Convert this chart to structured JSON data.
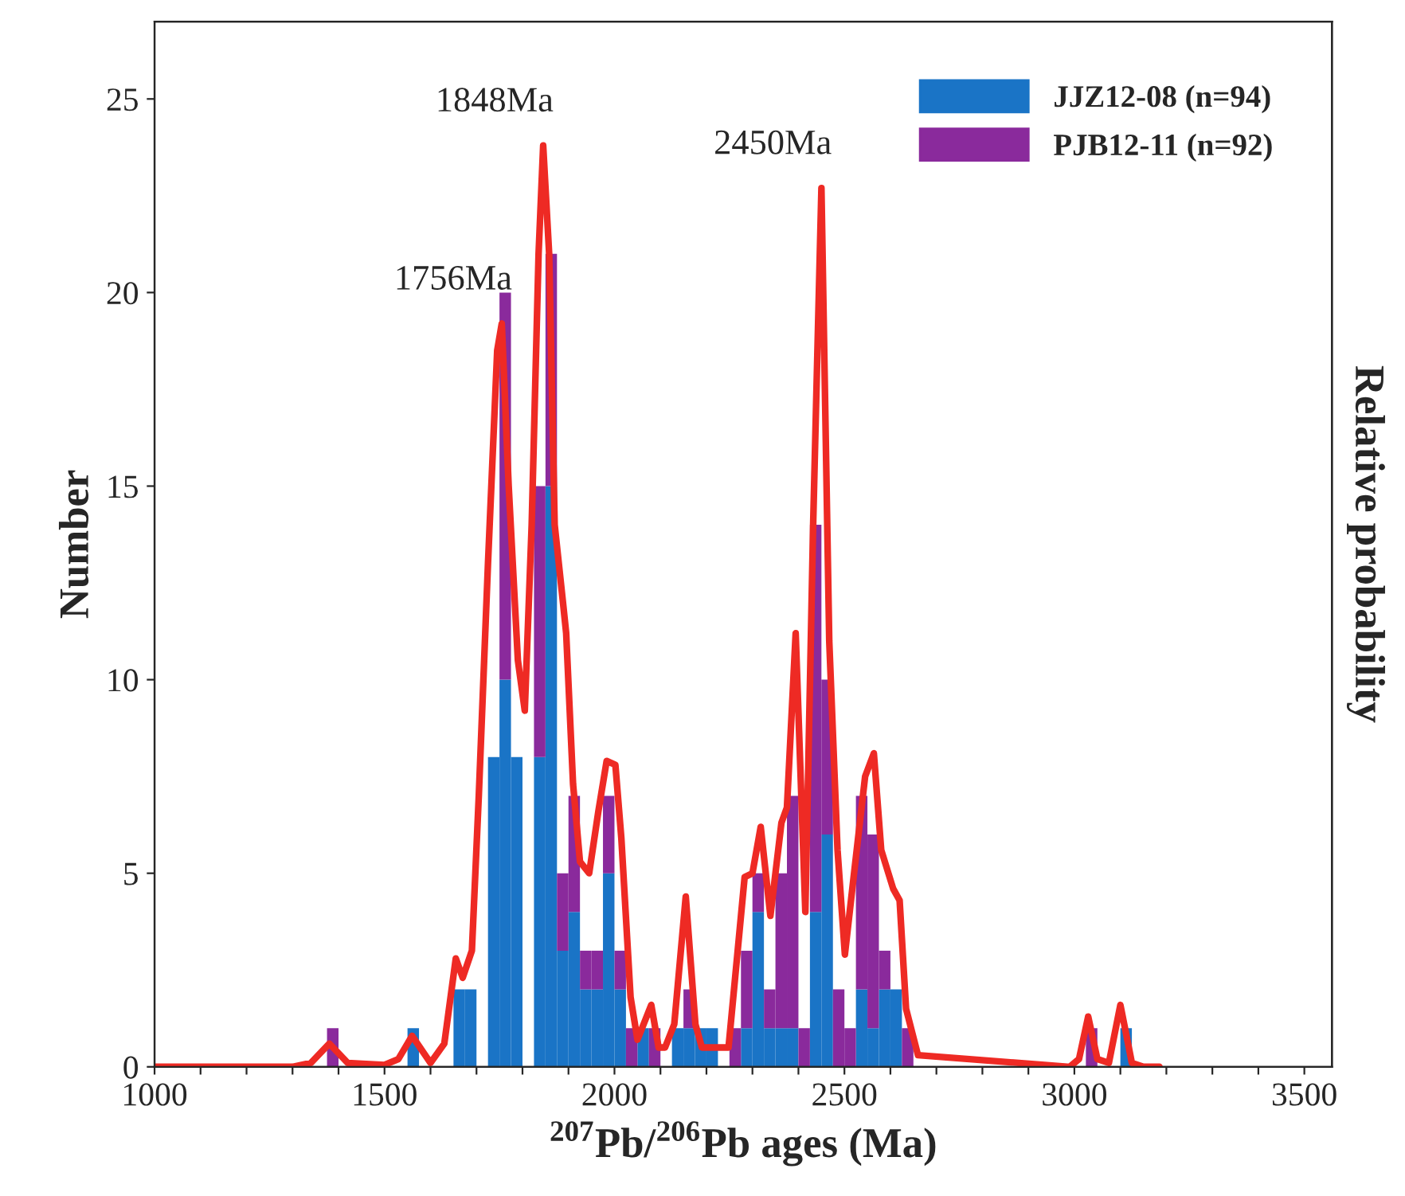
{
  "chart_data": {
    "type": "bar",
    "stacked": true,
    "xlabel": "$^{207}$Pb/$^{206}$Pb ages (Ma)",
    "ylabel": "Number",
    "y2label": "Relative probability",
    "x": [
      1387.5,
      1412.5,
      1437.5,
      1462.5,
      1487.5,
      1512.5,
      1537.5,
      1562.5,
      1587.5,
      1612.5,
      1637.5,
      1662.5,
      1687.5,
      1712.5,
      1737.5,
      1762.5,
      1787.5,
      1812.5,
      1837.5,
      1862.5,
      1887.5,
      1912.5,
      1937.5,
      1962.5,
      1987.5,
      2012.5,
      2037.5,
      2062.5,
      2087.5,
      2112.5,
      2137.5,
      2162.5,
      2187.5,
      2212.5,
      2237.5,
      2262.5,
      2287.5,
      2312.5,
      2337.5,
      2362.5,
      2387.5,
      2412.5,
      2437.5,
      2462.5,
      2487.5,
      2512.5,
      2537.5,
      2562.5,
      2587.5,
      2612.5,
      2637.5,
      2662.5,
      2687.5,
      2712.5,
      2737.5,
      2762.5,
      2787.5,
      2812.5,
      2837.5,
      2862.5,
      2887.5,
      2912.5,
      2937.5,
      2962.5,
      2987.5,
      3012.5,
      3037.5,
      3062.5,
      3087.5,
      3112.5
    ],
    "series": [
      {
        "name": "JJZ12-08 (n=94)",
        "color": "#1a74c6",
        "values": [
          0,
          0,
          0,
          0,
          0,
          0,
          0,
          1,
          0,
          0,
          0,
          2,
          2,
          0,
          8,
          10,
          8,
          0,
          8,
          15,
          3,
          4,
          2,
          2,
          5,
          2,
          0,
          1,
          0,
          0,
          1,
          1,
          1,
          1,
          0,
          0,
          1,
          4,
          1,
          1,
          1,
          0,
          4,
          6,
          0,
          0,
          2,
          1,
          2,
          2,
          0,
          0,
          0,
          0,
          0,
          0,
          0,
          0,
          0,
          0,
          0,
          0,
          0,
          0,
          0,
          0,
          0,
          0,
          0,
          1
        ]
      },
      {
        "name": "PJB12-11 (n=92)",
        "color": "#8a2a9c",
        "values": [
          1,
          0,
          0,
          0,
          0,
          0,
          0,
          0,
          0,
          0,
          0,
          0,
          0,
          0,
          0,
          10,
          0,
          0,
          7,
          6,
          2,
          3,
          1,
          1,
          2,
          1,
          1,
          0,
          1,
          0,
          0,
          1,
          0,
          0,
          0,
          1,
          2,
          1,
          1,
          4,
          6,
          1,
          10,
          4,
          2,
          1,
          5,
          5,
          1,
          0,
          1,
          0,
          0,
          0,
          0,
          0,
          0,
          0,
          0,
          0,
          0,
          0,
          0,
          0,
          0,
          0,
          1,
          0,
          0,
          0
        ]
      },
      {
        "type": "line",
        "color": "#ee2a24",
        "x": [
          1000,
          1300,
          1340,
          1380,
          1420,
          1500,
          1530,
          1560,
          1600,
          1630,
          1655,
          1670,
          1690,
          1705,
          1725,
          1745,
          1755,
          1770,
          1790,
          1805,
          1820,
          1835,
          1845,
          1858,
          1870,
          1888,
          1895,
          1910,
          1925,
          1945,
          1965,
          1983,
          2002,
          2015,
          2035,
          2050,
          2080,
          2096,
          2110,
          2130,
          2155,
          2176,
          2190,
          2210,
          2248,
          2283,
          2300,
          2318,
          2339,
          2363,
          2375,
          2394,
          2415,
          2432,
          2450,
          2467,
          2485,
          2501,
          2520,
          2545,
          2564,
          2580,
          2606,
          2620,
          2634,
          2660,
          2990,
          3010,
          3030,
          3050,
          3075,
          3100,
          3125,
          3150,
          3185
        ],
        "values": [
          0,
          0,
          0.1,
          0.6,
          0.1,
          0.05,
          0.2,
          0.8,
          0.1,
          0.6,
          2.8,
          2.3,
          3,
          7,
          13,
          18.5,
          19.2,
          15,
          10.5,
          9.2,
          14,
          21,
          23.8,
          21,
          14,
          12,
          11.2,
          7.3,
          5.3,
          5,
          6.6,
          7.9,
          7.8,
          5.9,
          1.8,
          0.7,
          1.6,
          0.5,
          0.5,
          1.1,
          4.4,
          1.1,
          0.5,
          0.5,
          0.5,
          4.9,
          5,
          6.2,
          3.9,
          6.3,
          6.7,
          11.2,
          4,
          14,
          22.7,
          11,
          5.6,
          2.9,
          4.9,
          7.5,
          8.1,
          5.6,
          4.6,
          4.3,
          1.5,
          0.3,
          0,
          0.2,
          1.3,
          0.2,
          0.1,
          1.6,
          0.1,
          0,
          0
        ]
      }
    ],
    "annotations": [
      "1756Ma",
      "1848Ma",
      "2450Ma"
    ],
    "xlim": [
      1000,
      3560
    ],
    "ylim": [
      0,
      27
    ],
    "xticks": [
      1000,
      {
        "value": 1100,
        "label": null
      },
      {
        "value": 1200,
        "label": null
      },
      {
        "value": 1300,
        "label": null
      },
      {
        "value": 1400,
        "label": null
      },
      1500,
      {
        "value": 1600,
        "label": null
      },
      {
        "value": 1700,
        "label": null
      },
      {
        "value": 1800,
        "label": null
      },
      {
        "value": 1900,
        "label": null
      },
      2000,
      {
        "value": 2100,
        "label": null
      },
      {
        "value": 2200,
        "label": null
      },
      {
        "value": 2300,
        "label": null
      },
      {
        "value": 2400,
        "label": null
      },
      2500,
      {
        "value": 2600,
        "label": null
      },
      {
        "value": 2700,
        "label": null
      },
      {
        "value": 2800,
        "label": null
      },
      {
        "value": 2900,
        "label": null
      },
      3000,
      {
        "value": 3100,
        "label": null
      },
      {
        "value": 3200,
        "label": null
      },
      {
        "value": 3300,
        "label": null
      },
      {
        "value": 3400,
        "label": null
      },
      3500
    ],
    "yticks": [
      0,
      5,
      10,
      15,
      20,
      25
    ],
    "legend": "top right",
    "grid": false
  }
}
